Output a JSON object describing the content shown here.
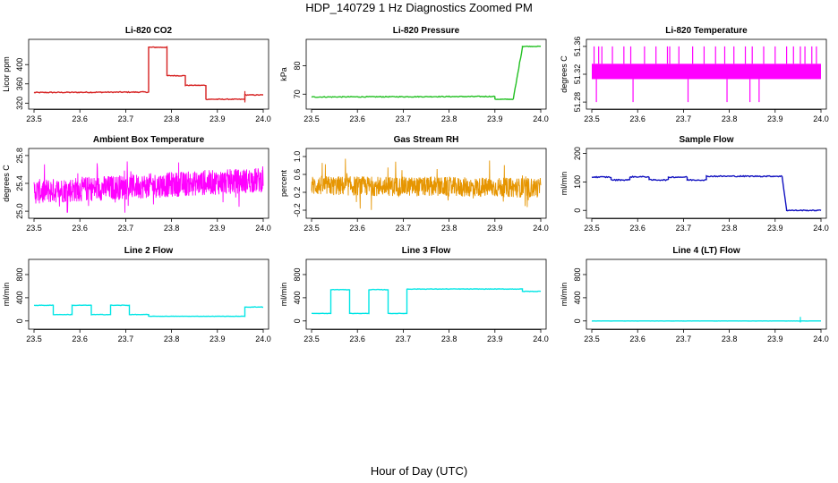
{
  "figure": {
    "title": "HDP_140729  1 Hz Diagnostics Zoomed PM",
    "xlabel": "Hour of Day (UTC)"
  },
  "chart_data": [
    {
      "type": "line",
      "title": "Li-820 CO2",
      "ylabel": "Licor ppm",
      "color": "#d62020",
      "xlim": [
        23.5,
        24.0
      ],
      "xticks": [
        "23.5",
        "23.6",
        "23.7",
        "23.8",
        "23.9",
        "24.0"
      ],
      "ylim": [
        315,
        445
      ],
      "yticks": [
        320,
        360,
        400
      ],
      "ytick_labels": [
        "320",
        "360",
        "400"
      ],
      "kind": "step",
      "segments": [
        {
          "x": [
            23.5,
            23.75
          ],
          "y": [
            342,
            343
          ],
          "noise": 1.0
        },
        {
          "x": [
            23.75,
            23.79
          ],
          "y": [
            436,
            436
          ],
          "noise": 0.8
        },
        {
          "x": [
            23.79,
            23.83
          ],
          "y": [
            377,
            377
          ],
          "noise": 0.8
        },
        {
          "x": [
            23.83,
            23.875
          ],
          "y": [
            357,
            357
          ],
          "noise": 0.8
        },
        {
          "x": [
            23.875,
            23.96
          ],
          "y": [
            328,
            328
          ],
          "noise": 0.8
        },
        {
          "x": [
            23.96,
            24.0
          ],
          "y": [
            337,
            337
          ],
          "noise": 0.8
        }
      ],
      "spikes": [
        {
          "x": 23.96,
          "y": 345
        }
      ]
    },
    {
      "type": "line",
      "title": "Li-820 Pressure",
      "ylabel": "kPa",
      "color": "#22c022",
      "xlim": [
        23.5,
        24.0
      ],
      "xticks": [
        "23.5",
        "23.6",
        "23.7",
        "23.8",
        "23.9",
        "24.0"
      ],
      "ylim": [
        66,
        88
      ],
      "yticks": [
        70,
        80
      ],
      "ytick_labels": [
        "70",
        "80"
      ],
      "kind": "step",
      "segments": [
        {
          "x": [
            23.5,
            23.9
          ],
          "y": [
            69.0,
            69.2
          ],
          "noise": 0.15
        },
        {
          "x": [
            23.9,
            23.94
          ],
          "y": [
            68.2,
            68.2
          ],
          "noise": 0.1
        },
        {
          "x": [
            23.94,
            23.96
          ],
          "y": [
            68.2,
            86.5
          ],
          "noise": 0.3
        },
        {
          "x": [
            23.96,
            24.0
          ],
          "y": [
            86.8,
            86.8
          ],
          "noise": 0.1
        }
      ],
      "spikes": []
    },
    {
      "type": "line",
      "title": "Li-820 Temperature",
      "ylabel": "degrees C",
      "color": "#ff00ff",
      "xlim": [
        23.5,
        24.0
      ],
      "xticks": [
        "23.5",
        "23.6",
        "23.7",
        "23.8",
        "23.9",
        "24.0"
      ],
      "ylim": [
        51.275,
        51.365
      ],
      "yticks": [
        51.28,
        51.32,
        51.36
      ],
      "ytick_labels": [
        "51.28",
        "51.32",
        "51.36"
      ],
      "kind": "band",
      "band": {
        "lo": 51.313,
        "hi": 51.335
      },
      "up_spikes": [
        23.505,
        23.515,
        23.522,
        23.545,
        23.57,
        23.585,
        23.615,
        23.64,
        23.665,
        23.67,
        23.69,
        23.72,
        23.745,
        23.77,
        23.79,
        23.81,
        23.835,
        23.85,
        23.875,
        23.9,
        23.925,
        23.94,
        23.955,
        23.965,
        23.98,
        23.99
      ],
      "up_level": 51.36,
      "down_spikes": [
        23.51,
        23.59,
        23.71,
        23.795,
        23.845,
        23.865
      ],
      "down_level": 51.28
    },
    {
      "type": "line",
      "title": "Ambient Box Temperature",
      "ylabel": "degrees C",
      "color": "#ff00ff",
      "xlim": [
        23.5,
        24.0
      ],
      "xticks": [
        "23.5",
        "23.6",
        "23.7",
        "23.8",
        "23.9",
        "24.0"
      ],
      "ylim": [
        24.95,
        25.85
      ],
      "yticks": [
        25.0,
        25.4,
        25.8
      ],
      "ytick_labels": [
        "25.0",
        "25.4",
        "25.8"
      ],
      "kind": "noise",
      "mean_start": 25.28,
      "mean_end": 25.45,
      "spread": 0.18,
      "min": 24.98,
      "max": 25.82
    },
    {
      "type": "line",
      "title": "Gas Stream RH",
      "ylabel": "percent",
      "color": "#e69500",
      "xlim": [
        23.5,
        24.0
      ],
      "xticks": [
        "23.5",
        "23.6",
        "23.7",
        "23.8",
        "23.9",
        "24.0"
      ],
      "ylim": [
        -0.3,
        1.1
      ],
      "yticks": [
        -0.2,
        0.2,
        0.6,
        1.0
      ],
      "ytick_labels": [
        "-0.2",
        "0.2",
        "0.6",
        "1.0"
      ],
      "kind": "noise",
      "mean_start": 0.35,
      "mean_end": 0.3,
      "spread": 0.22,
      "min": -0.28,
      "max": 1.05
    },
    {
      "type": "line",
      "title": "Sample Flow",
      "ylabel": "ml/min",
      "color": "#1010c0",
      "xlim": [
        23.5,
        24.0
      ],
      "xticks": [
        "23.5",
        "23.6",
        "23.7",
        "23.8",
        "23.9",
        "24.0"
      ],
      "ylim": [
        -15,
        205
      ],
      "yticks": [
        0,
        100,
        200
      ],
      "ytick_labels": [
        "0",
        "100",
        "200"
      ],
      "kind": "step",
      "segments": [
        {
          "x": [
            23.5,
            23.542
          ],
          "y": [
            117,
            117
          ],
          "noise": 2
        },
        {
          "x": [
            23.542,
            23.583
          ],
          "y": [
            107,
            107
          ],
          "noise": 2
        },
        {
          "x": [
            23.583,
            23.625
          ],
          "y": [
            118,
            118
          ],
          "noise": 2
        },
        {
          "x": [
            23.625,
            23.667
          ],
          "y": [
            107,
            107
          ],
          "noise": 2
        },
        {
          "x": [
            23.667,
            23.708
          ],
          "y": [
            117,
            117
          ],
          "noise": 2
        },
        {
          "x": [
            23.708,
            23.75
          ],
          "y": [
            107,
            107
          ],
          "noise": 2
        },
        {
          "x": [
            23.75,
            23.915
          ],
          "y": [
            120,
            120
          ],
          "noise": 2
        },
        {
          "x": [
            23.915,
            23.925
          ],
          "y": [
            120,
            2
          ],
          "noise": 1
        },
        {
          "x": [
            23.925,
            24.0
          ],
          "y": [
            0,
            0
          ],
          "noise": 1.5
        }
      ],
      "spikes": []
    },
    {
      "type": "line",
      "title": "Line 2 Flow",
      "ylabel": "ml/min",
      "color": "#00e5e5",
      "xlim": [
        23.5,
        24.0
      ],
      "xticks": [
        "23.5",
        "23.6",
        "23.7",
        "23.8",
        "23.9",
        "24.0"
      ],
      "ylim": [
        -80,
        1000
      ],
      "yticks": [
        0,
        400,
        800
      ],
      "ytick_labels": [
        "0",
        "400",
        "800"
      ],
      "kind": "step",
      "segments": [
        {
          "x": [
            23.5,
            23.542
          ],
          "y": [
            270,
            270
          ],
          "noise": 4
        },
        {
          "x": [
            23.542,
            23.583
          ],
          "y": [
            110,
            110
          ],
          "noise": 3
        },
        {
          "x": [
            23.583,
            23.625
          ],
          "y": [
            270,
            270
          ],
          "noise": 4
        },
        {
          "x": [
            23.625,
            23.667
          ],
          "y": [
            110,
            110
          ],
          "noise": 3
        },
        {
          "x": [
            23.667,
            23.708
          ],
          "y": [
            270,
            270
          ],
          "noise": 4
        },
        {
          "x": [
            23.708,
            23.75
          ],
          "y": [
            110,
            110
          ],
          "noise": 3
        },
        {
          "x": [
            23.75,
            23.96
          ],
          "y": [
            80,
            80
          ],
          "noise": 2
        },
        {
          "x": [
            23.96,
            24.0
          ],
          "y": [
            240,
            240
          ],
          "noise": 4
        }
      ],
      "spikes": []
    },
    {
      "type": "line",
      "title": "Line 3 Flow",
      "ylabel": "ml/min",
      "color": "#00e5e5",
      "xlim": [
        23.5,
        24.0
      ],
      "xticks": [
        "23.5",
        "23.6",
        "23.7",
        "23.8",
        "23.9",
        "24.0"
      ],
      "ylim": [
        -80,
        1000
      ],
      "yticks": [
        0,
        400,
        800
      ],
      "ytick_labels": [
        "0",
        "400",
        "800"
      ],
      "kind": "step",
      "segments": [
        {
          "x": [
            23.5,
            23.542
          ],
          "y": [
            130,
            130
          ],
          "noise": 3
        },
        {
          "x": [
            23.542,
            23.583
          ],
          "y": [
            540,
            540
          ],
          "noise": 4
        },
        {
          "x": [
            23.583,
            23.625
          ],
          "y": [
            130,
            130
          ],
          "noise": 3
        },
        {
          "x": [
            23.625,
            23.667
          ],
          "y": [
            540,
            540
          ],
          "noise": 4
        },
        {
          "x": [
            23.667,
            23.708
          ],
          "y": [
            130,
            130
          ],
          "noise": 3
        },
        {
          "x": [
            23.708,
            23.96
          ],
          "y": [
            550,
            550
          ],
          "noise": 4
        },
        {
          "x": [
            23.96,
            24.0
          ],
          "y": [
            510,
            510
          ],
          "noise": 4
        }
      ],
      "spikes": []
    },
    {
      "type": "line",
      "title": "Line 4 (LT) Flow",
      "ylabel": "ml/min",
      "color": "#00e5e5",
      "xlim": [
        23.5,
        24.0
      ],
      "xticks": [
        "23.5",
        "23.6",
        "23.7",
        "23.8",
        "23.9",
        "24.0"
      ],
      "ylim": [
        -80,
        1000
      ],
      "yticks": [
        0,
        400,
        800
      ],
      "ytick_labels": [
        "0",
        "400",
        "800"
      ],
      "kind": "step",
      "segments": [
        {
          "x": [
            23.5,
            24.0
          ],
          "y": [
            0,
            0
          ],
          "noise": 1
        }
      ],
      "spikes": [
        {
          "x": 23.955,
          "y": 70
        }
      ]
    }
  ]
}
